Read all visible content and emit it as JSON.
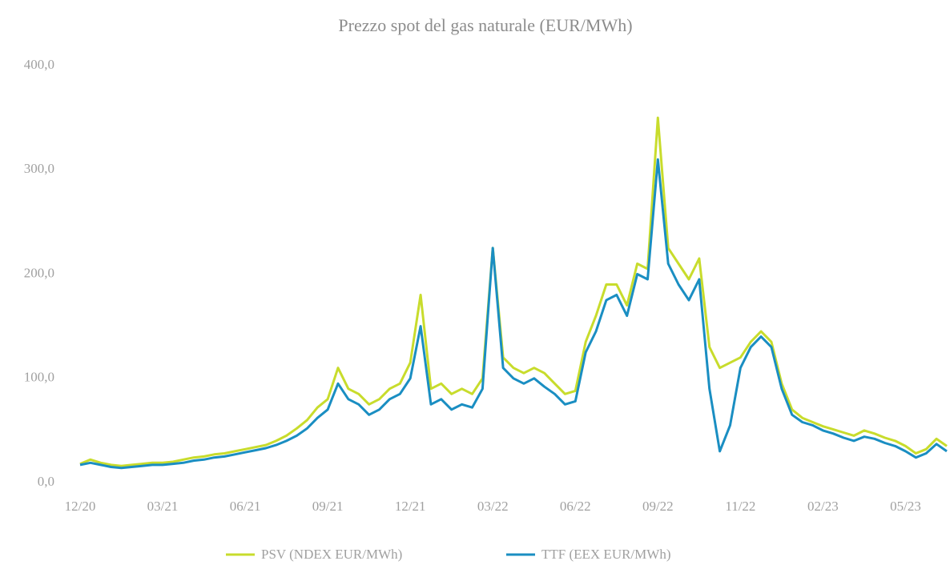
{
  "chart_data": {
    "type": "line",
    "title": "Prezzo spot del gas naturale (EUR/MWh)",
    "categories": [
      "12/20",
      null,
      null,
      null,
      null,
      null,
      null,
      null,
      "03/21",
      null,
      null,
      null,
      null,
      null,
      null,
      null,
      "06/21",
      null,
      null,
      null,
      null,
      null,
      null,
      null,
      "09/21",
      null,
      null,
      null,
      null,
      null,
      null,
      null,
      "12/21",
      null,
      null,
      null,
      null,
      null,
      null,
      null,
      "03/22",
      null,
      null,
      null,
      null,
      null,
      null,
      null,
      "06/22",
      null,
      null,
      null,
      null,
      null,
      null,
      null,
      "09/22",
      null,
      null,
      null,
      null,
      null,
      null,
      null,
      "11/22",
      null,
      null,
      null,
      null,
      null,
      null,
      null,
      "02/23",
      null,
      null,
      null,
      null,
      null,
      null,
      null,
      "05/23",
      null,
      null,
      null,
      null
    ],
    "series": [
      {
        "name": "PSV (NDEX EUR/MWh)",
        "color": "#c8dc2c",
        "values": [
          18,
          22,
          19,
          17,
          16,
          17,
          18,
          19,
          19,
          20,
          22,
          24,
          25,
          27,
          28,
          30,
          32,
          34,
          36,
          40,
          45,
          52,
          60,
          72,
          80,
          110,
          90,
          85,
          75,
          80,
          90,
          95,
          115,
          180,
          90,
          95,
          85,
          90,
          85,
          100,
          225,
          120,
          110,
          105,
          110,
          105,
          95,
          85,
          88,
          135,
          160,
          190,
          190,
          170,
          210,
          205,
          350,
          225,
          210,
          195,
          215,
          130,
          110,
          115,
          120,
          135,
          145,
          135,
          95,
          70,
          62,
          58,
          54,
          51,
          48,
          45,
          50,
          47,
          43,
          40,
          35,
          28,
          32,
          42,
          35
        ]
      },
      {
        "name": "TTF (EEX EUR/MWh)",
        "color": "#1a8ec2",
        "values": [
          17,
          19,
          17,
          15,
          14,
          15,
          16,
          17,
          17,
          18,
          19,
          21,
          22,
          24,
          25,
          27,
          29,
          31,
          33,
          36,
          40,
          45,
          52,
          62,
          70,
          95,
          80,
          75,
          65,
          70,
          80,
          85,
          100,
          150,
          75,
          80,
          70,
          75,
          72,
          90,
          225,
          110,
          100,
          95,
          100,
          92,
          85,
          75,
          78,
          125,
          145,
          175,
          180,
          160,
          200,
          195,
          310,
          210,
          190,
          175,
          195,
          90,
          30,
          55,
          110,
          130,
          140,
          130,
          90,
          65,
          58,
          55,
          50,
          47,
          43,
          40,
          44,
          42,
          38,
          35,
          30,
          24,
          28,
          37,
          30
        ]
      }
    ],
    "ylim": [
      0,
      400
    ],
    "yticks": [
      {
        "value": 0,
        "label": "0,0"
      },
      {
        "value": 100,
        "label": "100,0"
      },
      {
        "value": 200,
        "label": "200,0"
      },
      {
        "value": 300,
        "label": "300,0"
      },
      {
        "value": 400,
        "label": "400,0"
      }
    ],
    "legend": "bottom"
  }
}
